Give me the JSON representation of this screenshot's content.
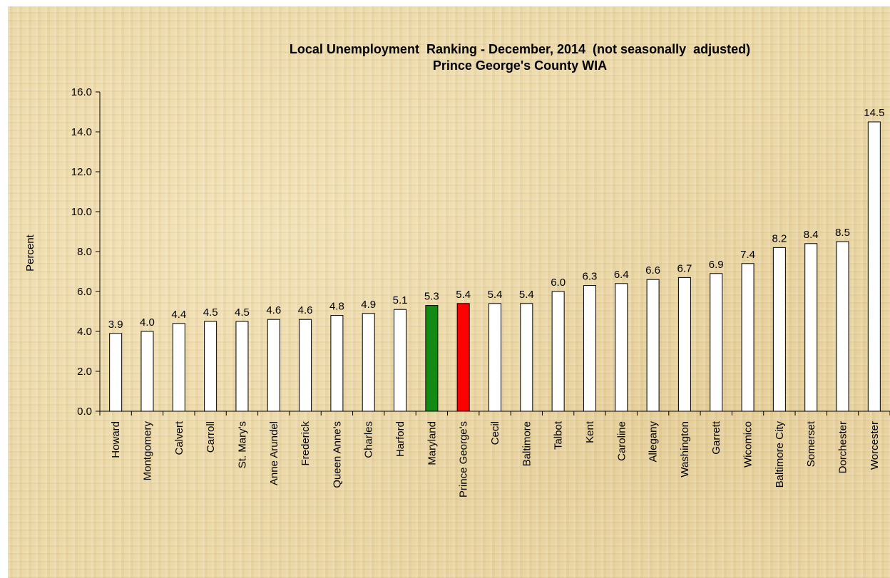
{
  "chart_data": {
    "type": "bar",
    "title": "Local Unemployment  Ranking - December, 2014  (not seasonally  adjusted)",
    "subtitle": "Prince George's County WIA",
    "xlabel": "",
    "ylabel": "Percent",
    "ylim": [
      0,
      16
    ],
    "yticks": [
      "0.0",
      "2.0",
      "4.0",
      "6.0",
      "8.0",
      "10.0",
      "12.0",
      "14.0",
      "16.0"
    ],
    "grid": false,
    "categories": [
      "Howard",
      "Montgomery",
      "Calvert",
      "Carroll",
      "St. Mary's",
      "Anne Arundel",
      "Frederick",
      "Queen Anne's",
      "Charles",
      "Harford",
      "Maryland",
      "Prince George's",
      "Cecil",
      "Baltimore",
      "Talbot",
      "Kent",
      "Caroline",
      "Allegany",
      "Washington",
      "Garrett",
      "Wicomico",
      "Baltimore City",
      "Somerset",
      "Dorchester",
      "Worcester"
    ],
    "values": [
      3.9,
      4.0,
      4.4,
      4.5,
      4.5,
      4.6,
      4.6,
      4.8,
      4.9,
      5.1,
      5.3,
      5.4,
      5.4,
      5.4,
      6.0,
      6.3,
      6.4,
      6.6,
      6.7,
      6.9,
      7.4,
      8.2,
      8.4,
      8.5,
      14.5
    ],
    "value_labels": [
      "3.9",
      "4.0",
      "4.4",
      "4.5",
      "4.5",
      "4.6",
      "4.6",
      "4.8",
      "4.9",
      "5.1",
      "5.3",
      "5.4",
      "5.4",
      "5.4",
      "6.0",
      "6.3",
      "6.4",
      "6.6",
      "6.7",
      "6.9",
      "7.4",
      "8.2",
      "8.4",
      "8.5",
      "14.5"
    ],
    "highlights": {
      "Maryland": "#138a13",
      "Prince George's": "#ff0000"
    },
    "default_bar_color": "#ffffff",
    "bar_outline_color": "#000000"
  }
}
